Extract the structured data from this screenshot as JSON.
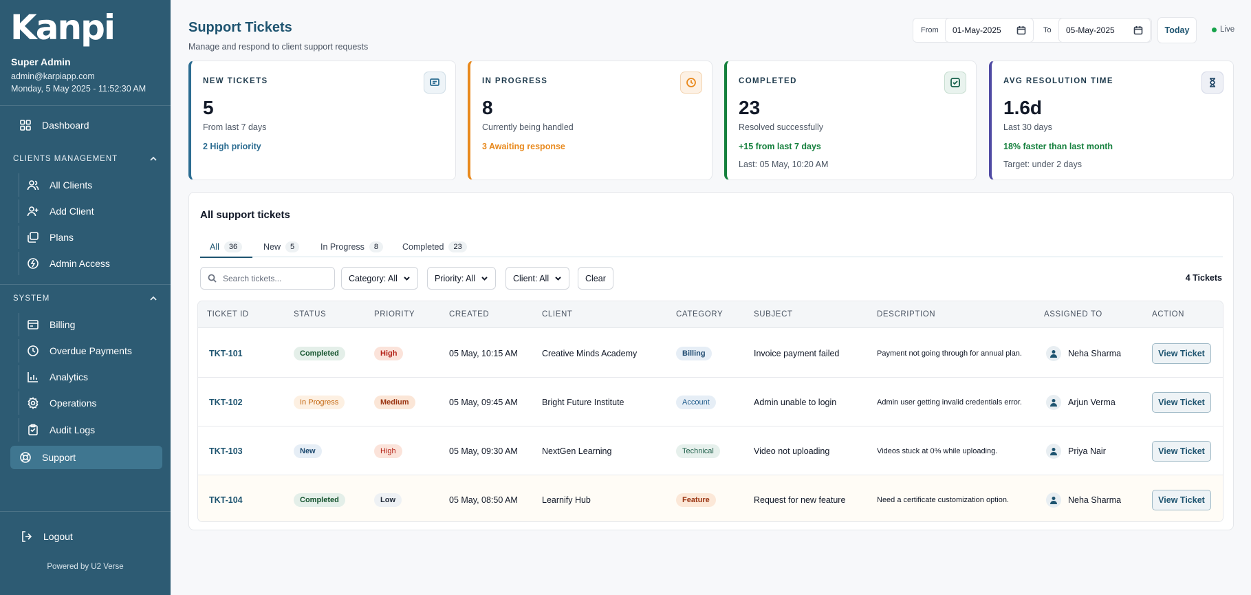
{
  "sidebar": {
    "logo": "Kanpi",
    "user_name": "Super Admin",
    "user_email": "admin@karpiapp.com",
    "date_time": "Monday, 5 May 2025 - 11:52:30 AM",
    "dashboard": "Dashboard",
    "clients_heading": "CLIENTS MANAGEMENT",
    "all_clients": "All Clients",
    "add_client": "Add Client",
    "plans": "Plans",
    "admin_access": "Admin Access",
    "system_heading": "SYSTEM",
    "billing": "Billing",
    "overdue_payments": "Overdue Payments",
    "analytics": "Analytics",
    "operations": "Operations",
    "audit_logs": "Audit Logs",
    "support": "Support",
    "logout": "Logout",
    "powered_by": "Powered by U2 Verse"
  },
  "header": {
    "title": "Support Tickets",
    "subtitle": "Manage and respond to client support requests",
    "from_label": "From",
    "from_date": "01-May-2025",
    "to_label": "To",
    "to_date": "05-May-2025",
    "today": "Today",
    "live": "Live"
  },
  "cards": {
    "new": {
      "label": "NEW TICKETS",
      "value": "5",
      "desc": "From last 7 days",
      "note": "2 High priority",
      "color": "#2b6c91"
    },
    "progress": {
      "label": "IN PROGRESS",
      "value": "8",
      "desc": "Currently being handled",
      "note": "3 Awaiting response",
      "color": "#e8891d"
    },
    "completed": {
      "label": "COMPLETED",
      "value": "23",
      "desc": "Resolved successfully",
      "note": "+15 from last 7 days",
      "note2": "Last: 05 May, 10:20 AM",
      "color": "#15803d"
    },
    "avg": {
      "label": "AVG RESOLUTION TIME",
      "value": "1.6d",
      "desc": "Last 30 days",
      "note": "18% faster than last month",
      "note2": "Target: under 2 days",
      "color": "#4f4aa3"
    }
  },
  "tickets_panel": {
    "title": "All support tickets",
    "tabs": [
      {
        "label": "All",
        "count": "36"
      },
      {
        "label": "New",
        "count": "5"
      },
      {
        "label": "In Progress",
        "count": "8"
      },
      {
        "label": "Completed",
        "count": "23"
      }
    ],
    "search_placeholder": "Search tickets...",
    "category_filter": "Category: All",
    "priority_filter": "Priority: All",
    "client_filter": "Client: All",
    "clear": "Clear",
    "ticket_count": "4 Tickets",
    "columns": [
      "TICKET ID",
      "STATUS",
      "PRIORITY",
      "CREATED",
      "CLIENT",
      "CATEGORY",
      "SUBJECT",
      "DESCRIPTION",
      "ASSIGNED TO",
      "ACTION"
    ],
    "rows": [
      {
        "id": "TKT-101",
        "status": "Completed",
        "priority": "High",
        "created": "05 May, 10:15 AM",
        "client": "Creative Minds Academy",
        "category": "Billing",
        "subject": "Invoice payment failed",
        "description": "Payment not going through for annual plan.",
        "assigned": "Neha Sharma",
        "action": "View Ticket"
      },
      {
        "id": "TKT-102",
        "status": "In Progress",
        "priority": "Medium",
        "created": "05 May, 09:45 AM",
        "client": "Bright Future Institute",
        "category": "Account",
        "subject": "Admin unable to login",
        "description": "Admin user getting invalid credentials error.",
        "assigned": "Arjun Verma",
        "action": "View Ticket"
      },
      {
        "id": "TKT-103",
        "status": "New",
        "priority": "High",
        "created": "05 May, 09:30 AM",
        "client": "NextGen Learning",
        "category": "Technical",
        "subject": "Video not uploading",
        "description": "Videos stuck at 0% while uploading.",
        "assigned": "Priya Nair",
        "action": "View Ticket"
      },
      {
        "id": "TKT-104",
        "status": "Completed",
        "priority": "Low",
        "created": "05 May, 08:50 AM",
        "client": "Learnify Hub",
        "category": "Feature",
        "subject": "Request for new feature",
        "description": "Need a certificate customization option.",
        "assigned": "Neha Sharma",
        "action": "View Ticket"
      }
    ]
  }
}
